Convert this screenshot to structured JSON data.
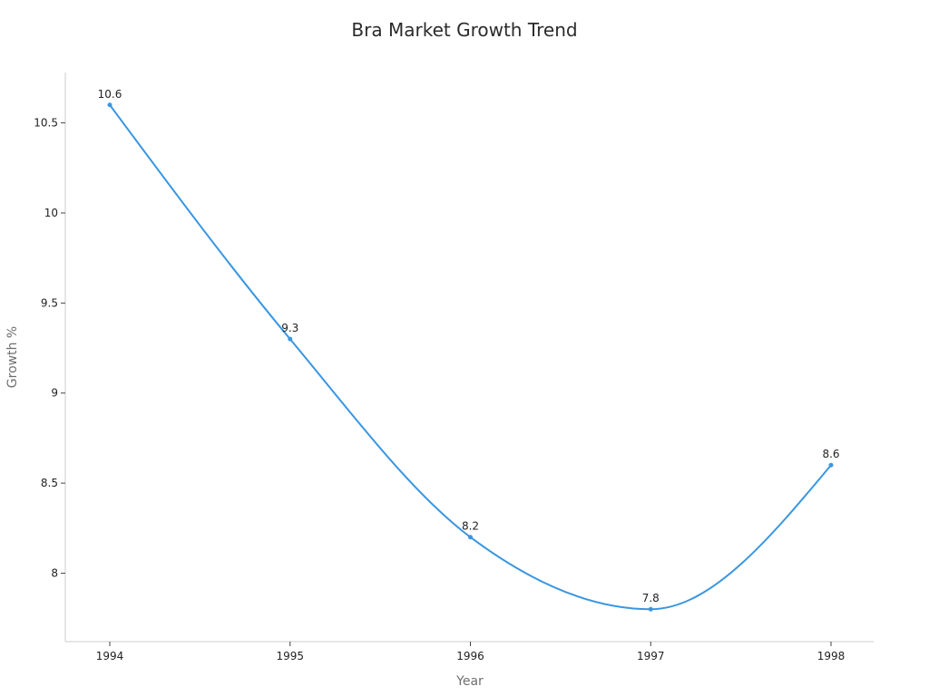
{
  "chart_data": {
    "type": "line",
    "title": "Bra Market Growth Trend",
    "xlabel": "Year",
    "ylabel": "Growth %",
    "categories": [
      "1994",
      "1995",
      "1996",
      "1997",
      "1998"
    ],
    "series": [
      {
        "values": [
          10.6,
          9.3,
          8.2,
          7.8,
          8.6
        ],
        "color": "#3a96e0",
        "smooth": true,
        "markers": true,
        "data_labels": true
      }
    ],
    "ylim": [
      7.62,
      10.78
    ],
    "yticks": [
      8,
      8.5,
      9,
      9.5,
      10,
      10.5
    ],
    "ytick_labels": [
      "8",
      "8.5",
      "9",
      "9.5",
      "10",
      "10.5"
    ],
    "grid": false,
    "legend": "none"
  }
}
